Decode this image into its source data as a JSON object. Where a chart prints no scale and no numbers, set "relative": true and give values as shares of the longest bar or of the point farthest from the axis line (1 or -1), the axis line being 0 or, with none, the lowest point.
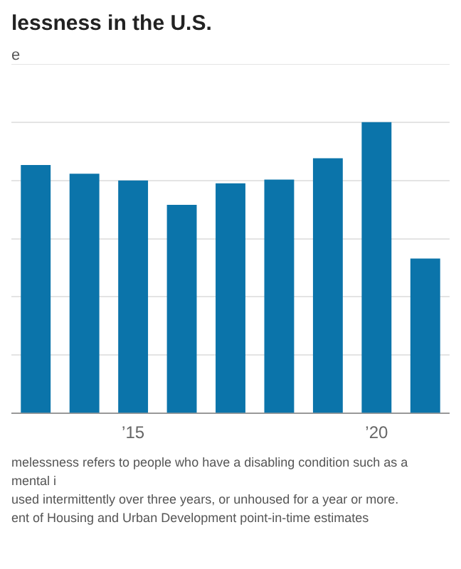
{
  "chart_data": {
    "type": "bar",
    "title": "lessness in the U.S.",
    "subtitle": "e",
    "categories": [
      null,
      null,
      "’15",
      null,
      null,
      null,
      null,
      "’20",
      null
    ],
    "values": [
      0.853,
      0.823,
      0.8,
      0.716,
      0.79,
      0.803,
      0.876,
      1,
      0.532
    ],
    "color": "#0b74aa",
    "relative": true,
    "grid": "y",
    "legend": false,
    "annotations": [
      "melessness refers to people who have a disabling condition such as a mental i",
      "used intermittently over three years, or unhoused for a year or more.",
      "ent of Housing and Urban Development point-in-time estimates"
    ]
  }
}
